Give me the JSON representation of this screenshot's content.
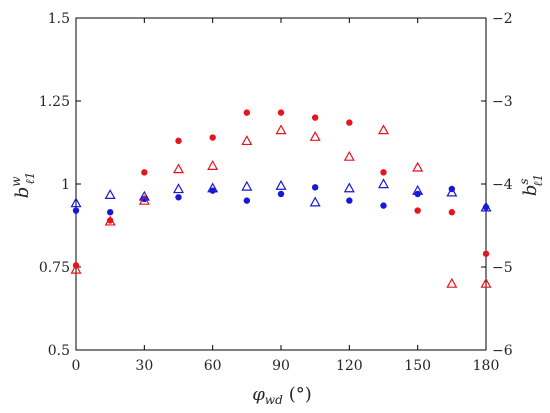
{
  "chart_data": {
    "type": "scatter",
    "xlabel": {
      "main": "φ",
      "sub": "wd",
      "unit": "(°)"
    },
    "ylabel_left": {
      "main": "b",
      "sup": "w",
      "sub": "ℓ1"
    },
    "ylabel_right": {
      "main": "b",
      "sup": "s",
      "sub": "ℓ1"
    },
    "xlim": [
      0,
      180
    ],
    "ylim_left": [
      0.5,
      1.5
    ],
    "ylim_right": [
      -6,
      -2
    ],
    "xticks": [
      0,
      30,
      60,
      90,
      120,
      150,
      180
    ],
    "xtick_labels": [
      "0",
      "30",
      "60",
      "90",
      "120",
      "150",
      "180"
    ],
    "yticks_left": [
      0.5,
      0.75,
      1.0,
      1.25,
      1.5
    ],
    "ytick_labels_left": [
      "0.5",
      "0.75",
      "1",
      "1.25",
      "1.5"
    ],
    "yticks_right": [
      -6,
      -5,
      -4,
      -3,
      -2
    ],
    "ytick_labels_right": [
      "−6",
      "−5",
      "−4",
      "−3",
      "−2"
    ],
    "grid": false,
    "legend": "none",
    "colors": {
      "red": "#e8141b",
      "blue": "#1818d8",
      "axis": "#000000"
    },
    "series": [
      {
        "axis": "left",
        "marker": "dot",
        "color": "red",
        "x": [
          0,
          15,
          30,
          45,
          60,
          75,
          90,
          105,
          120,
          135,
          150,
          165,
          180
        ],
        "y": [
          0.755,
          0.89,
          1.035,
          1.13,
          1.14,
          1.215,
          1.215,
          1.2,
          1.185,
          1.035,
          0.92,
          0.915,
          0.79
        ]
      },
      {
        "axis": "left",
        "marker": "dot",
        "color": "blue",
        "x": [
          0,
          15,
          30,
          45,
          60,
          75,
          90,
          105,
          120,
          135,
          150,
          165,
          180
        ],
        "y": [
          0.92,
          0.915,
          0.955,
          0.96,
          0.98,
          0.95,
          0.97,
          0.99,
          0.95,
          0.935,
          0.97,
          0.985,
          0.93
        ]
      },
      {
        "axis": "right",
        "marker": "triangle",
        "color": "red",
        "x": [
          0,
          15,
          30,
          45,
          60,
          75,
          90,
          105,
          120,
          135,
          150,
          165,
          180
        ],
        "y": [
          -5.03,
          -4.45,
          -4.2,
          -3.82,
          -3.78,
          -3.48,
          -3.35,
          -3.43,
          -3.67,
          -3.35,
          -3.8,
          -5.2,
          -5.2
        ]
      },
      {
        "axis": "right",
        "marker": "triangle",
        "color": "blue",
        "x": [
          0,
          15,
          30,
          45,
          60,
          75,
          90,
          105,
          120,
          135,
          150,
          165,
          180
        ],
        "y": [
          -4.23,
          -4.13,
          -4.15,
          -4.06,
          -4.05,
          -4.03,
          -4.02,
          -4.22,
          -4.05,
          -4.0,
          -4.08,
          -4.1,
          -4.28
        ]
      }
    ]
  }
}
